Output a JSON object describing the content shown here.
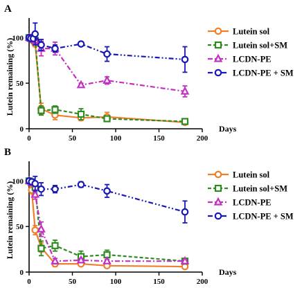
{
  "figure": {
    "ylabel": "Lutein remaining (%)",
    "xlabel": "Days"
  },
  "chart_data": [
    {
      "panel": "A",
      "type": "line",
      "xlabel": "Days",
      "ylabel": "Lutein remaining (%)",
      "xlim": [
        0,
        200
      ],
      "ylim": [
        0,
        120
      ],
      "xticks": [
        "0",
        "50",
        "100",
        "150",
        "200"
      ],
      "yticks": [
        "0",
        "50",
        "100"
      ],
      "legend_position": "right",
      "series": [
        {
          "name": "Lutein sol",
          "color": "#f07f2d",
          "marker": "circle",
          "line": "solid",
          "x": [
            0,
            2,
            5,
            7,
            14,
            30,
            60,
            90,
            180
          ],
          "y": [
            100,
            99,
            96,
            93,
            22,
            15,
            12,
            13,
            7
          ],
          "err": [
            0,
            2,
            2,
            3,
            6,
            5,
            3,
            5,
            2
          ]
        },
        {
          "name": "Lutein sol+SM",
          "color": "#2d8a1e",
          "marker": "square",
          "line": "dashed",
          "x": [
            0,
            2,
            5,
            7,
            14,
            30,
            60,
            90,
            180
          ],
          "y": [
            100,
            99,
            98,
            97,
            20,
            21,
            16,
            11,
            8
          ],
          "err": [
            0,
            2,
            2,
            3,
            5,
            4,
            6,
            3,
            2
          ]
        },
        {
          "name": "LCDN-PE",
          "color": "#c230c2",
          "marker": "triangle",
          "line": "dashdot",
          "x": [
            0,
            2,
            5,
            7,
            14,
            30,
            60,
            90,
            180
          ],
          "y": [
            100,
            99,
            98,
            97,
            88,
            88,
            48,
            53,
            41
          ],
          "err": [
            0,
            2,
            3,
            4,
            8,
            7,
            2,
            4,
            6
          ]
        },
        {
          "name": "LCDN-PE + SM",
          "color": "#1818b5",
          "marker": "circle",
          "line": "dashdotdot",
          "x": [
            0,
            2,
            5,
            7,
            14,
            30,
            60,
            90,
            180
          ],
          "y": [
            100,
            99,
            99,
            104,
            92,
            88,
            93,
            82,
            76
          ],
          "err": [
            0,
            2,
            3,
            12,
            6,
            4,
            2,
            8,
            14
          ]
        }
      ]
    },
    {
      "panel": "B",
      "type": "line",
      "xlabel": "Days",
      "ylabel": "Lutein remaining (%)",
      "xlim": [
        0,
        200
      ],
      "ylim": [
        0,
        120
      ],
      "xticks": [
        "0",
        "50",
        "100",
        "150",
        "200"
      ],
      "yticks": [
        "0",
        "50",
        "100"
      ],
      "legend_position": "right",
      "series": [
        {
          "name": "Lutein sol",
          "color": "#f07f2d",
          "marker": "circle",
          "line": "solid",
          "x": [
            0,
            3,
            7,
            14,
            30,
            60,
            90,
            180
          ],
          "y": [
            100,
            90,
            46,
            27,
            9,
            9,
            7,
            6
          ],
          "err": [
            0,
            4,
            5,
            5,
            3,
            2,
            2,
            2
          ]
        },
        {
          "name": "Lutein sol+SM",
          "color": "#2d8a1e",
          "marker": "square",
          "line": "dashed",
          "x": [
            0,
            3,
            7,
            14,
            30,
            60,
            90,
            180
          ],
          "y": [
            100,
            99,
            93,
            26,
            29,
            17,
            19,
            12
          ],
          "err": [
            0,
            3,
            6,
            8,
            6,
            6,
            5,
            3
          ]
        },
        {
          "name": "LCDN-PE",
          "color": "#c230c2",
          "marker": "triangle",
          "line": "dashdot",
          "x": [
            0,
            3,
            7,
            14,
            30,
            60,
            90,
            180
          ],
          "y": [
            100,
            98,
            85,
            47,
            12,
            13,
            12,
            12
          ],
          "err": [
            0,
            3,
            5,
            8,
            3,
            2,
            2,
            2
          ]
        },
        {
          "name": "LCDN-PE + SM",
          "color": "#1818b5",
          "marker": "circle",
          "line": "dashdotdot",
          "x": [
            0,
            3,
            7,
            14,
            30,
            60,
            90,
            180
          ],
          "y": [
            100,
            99,
            97,
            91,
            91,
            96,
            89,
            66
          ],
          "err": [
            0,
            3,
            8,
            7,
            4,
            3,
            7,
            12
          ]
        }
      ]
    }
  ]
}
